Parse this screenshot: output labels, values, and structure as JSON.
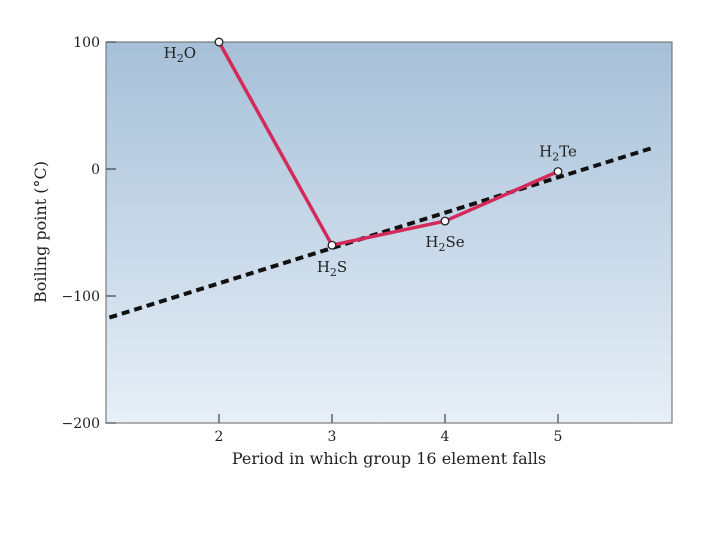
{
  "chart_data": {
    "type": "line",
    "xlabel": "Period in which group 16 element falls",
    "ylabel": "Boiling point (°C)",
    "xlim": [
      1,
      6
    ],
    "ylim": [
      -200,
      100
    ],
    "x_ticks": [
      2,
      3,
      4,
      5
    ],
    "y_ticks": [
      100,
      0,
      -100,
      -200
    ],
    "y_tick_labels": [
      "100",
      "0",
      "−100",
      "−200"
    ],
    "grid": false,
    "series": [
      {
        "style": "solid",
        "color": "#d42a5a",
        "marker": "open-circle",
        "points": [
          {
            "x": 2,
            "y": 100,
            "label_base": "H",
            "label_sub": "2",
            "label_rest": "O"
          },
          {
            "x": 3,
            "y": -60,
            "label_base": "H",
            "label_sub": "2",
            "label_rest": "S"
          },
          {
            "x": 4,
            "y": -41,
            "label_base": "H",
            "label_sub": "2",
            "label_rest": "Se"
          },
          {
            "x": 5,
            "y": -2,
            "label_base": "H",
            "label_sub": "2",
            "label_rest": "Te"
          }
        ]
      },
      {
        "style": "dashed",
        "color": "#111111",
        "x": [
          1.03,
          5.85
        ],
        "y": [
          -117,
          17
        ]
      }
    ],
    "colors": {
      "background_top": "#a6c0d8",
      "background_bottom": "#e7eff7",
      "frame": "#666666"
    }
  }
}
